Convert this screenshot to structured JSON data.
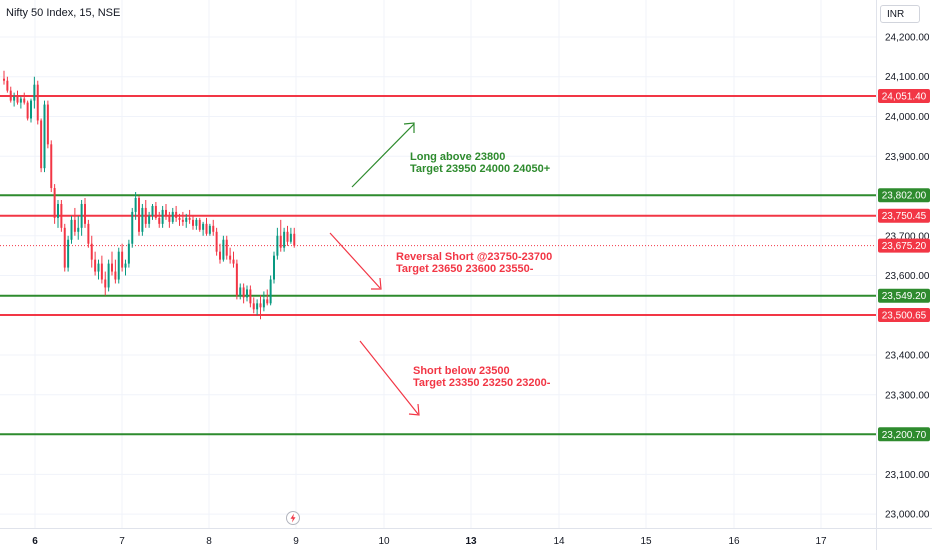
{
  "header": {
    "title": "Nifty 50 Index, 15, NSE"
  },
  "currency": "INR",
  "chart_data": {
    "type": "candlestick",
    "y_ticks": [
      "24,200.00",
      "24,100.00",
      "24,000.00",
      "23,900.00",
      "23,800.00",
      "23,700.00",
      "23,600.00",
      "23,500.00",
      "23,400.00",
      "23,300.00",
      "23,200.00",
      "23,100.00",
      "23,000.00"
    ],
    "y_tick_values": [
      24200,
      24100,
      24000,
      23900,
      23800,
      23700,
      23600,
      23500,
      23400,
      23300,
      23200,
      23100,
      23000
    ],
    "ylim": [
      22965,
      24293
    ],
    "x_ticks": [
      "6",
      "7",
      "8",
      "9",
      "10",
      "13",
      "14",
      "15",
      "16",
      "17"
    ],
    "x_ticks_bold": [
      "6",
      "13"
    ],
    "horizontal_levels": [
      {
        "value": 24051.4,
        "label": "24,051.40",
        "color": "#f23645"
      },
      {
        "value": 23802.0,
        "label": "23,802.00",
        "color": "#2e8b2e"
      },
      {
        "value": 23750.45,
        "label": "23,750.45",
        "color": "#f23645"
      },
      {
        "value": 23549.2,
        "label": "23,549.20",
        "color": "#2e8b2e"
      },
      {
        "value": 23500.65,
        "label": "23,500.65",
        "color": "#f23645"
      },
      {
        "value": 23200.7,
        "label": "23,200.70",
        "color": "#2e8b2e"
      }
    ],
    "last_price": {
      "value": 23675.2,
      "label": "23,675.20",
      "color": "#f23645"
    },
    "annotations": [
      {
        "lines": [
          "Long above 23800",
          "Target 23950 24000 24050+"
        ],
        "color": "#2e8b2e"
      },
      {
        "lines": [
          "Reversal Short @23750-23700",
          "Target 23650 23600 23550-"
        ],
        "color": "#f23645"
      },
      {
        "lines": [
          "Short below 23500",
          "Target 23350 23250 23200-"
        ],
        "color": "#f23645"
      }
    ],
    "colors": {
      "up": "#089981",
      "down": "#f23645",
      "grid": "#f0f3fa",
      "axis_text": "#131722"
    },
    "candles": [
      {
        "o": 24095,
        "h": 24115,
        "l": 24080,
        "c": 24090
      },
      {
        "o": 24090,
        "h": 24100,
        "l": 24060,
        "c": 24065
      },
      {
        "o": 24065,
        "h": 24075,
        "l": 24035,
        "c": 24040
      },
      {
        "o": 24040,
        "h": 24060,
        "l": 24025,
        "c": 24050
      },
      {
        "o": 24050,
        "h": 24065,
        "l": 24030,
        "c": 24035
      },
      {
        "o": 24035,
        "h": 24050,
        "l": 24020,
        "c": 24045
      },
      {
        "o": 24045,
        "h": 24060,
        "l": 24030,
        "c": 24035
      },
      {
        "o": 24035,
        "h": 24040,
        "l": 23990,
        "c": 23995
      },
      {
        "o": 23995,
        "h": 24045,
        "l": 23985,
        "c": 24040
      },
      {
        "o": 24040,
        "h": 24100,
        "l": 24020,
        "c": 24080
      },
      {
        "o": 24080,
        "h": 24090,
        "l": 23980,
        "c": 23990
      },
      {
        "o": 23990,
        "h": 23995,
        "l": 23860,
        "c": 23870
      },
      {
        "o": 23870,
        "h": 24040,
        "l": 23860,
        "c": 24030
      },
      {
        "o": 24030,
        "h": 24040,
        "l": 23920,
        "c": 23930
      },
      {
        "o": 23930,
        "h": 23940,
        "l": 23810,
        "c": 23820
      },
      {
        "o": 23820,
        "h": 23830,
        "l": 23730,
        "c": 23745
      },
      {
        "o": 23745,
        "h": 23790,
        "l": 23720,
        "c": 23780
      },
      {
        "o": 23780,
        "h": 23790,
        "l": 23710,
        "c": 23720
      },
      {
        "o": 23720,
        "h": 23730,
        "l": 23610,
        "c": 23620
      },
      {
        "o": 23620,
        "h": 23700,
        "l": 23610,
        "c": 23690
      },
      {
        "o": 23690,
        "h": 23750,
        "l": 23680,
        "c": 23740
      },
      {
        "o": 23740,
        "h": 23770,
        "l": 23700,
        "c": 23710
      },
      {
        "o": 23710,
        "h": 23750,
        "l": 23690,
        "c": 23720
      },
      {
        "o": 23720,
        "h": 23790,
        "l": 23700,
        "c": 23780
      },
      {
        "o": 23780,
        "h": 23795,
        "l": 23720,
        "c": 23730
      },
      {
        "o": 23730,
        "h": 23740,
        "l": 23670,
        "c": 23680
      },
      {
        "o": 23680,
        "h": 23700,
        "l": 23620,
        "c": 23640
      },
      {
        "o": 23640,
        "h": 23660,
        "l": 23600,
        "c": 23610
      },
      {
        "o": 23610,
        "h": 23640,
        "l": 23590,
        "c": 23630
      },
      {
        "o": 23630,
        "h": 23650,
        "l": 23580,
        "c": 23590
      },
      {
        "o": 23590,
        "h": 23610,
        "l": 23550,
        "c": 23570
      },
      {
        "o": 23570,
        "h": 23640,
        "l": 23560,
        "c": 23630
      },
      {
        "o": 23630,
        "h": 23660,
        "l": 23600,
        "c": 23610
      },
      {
        "o": 23610,
        "h": 23640,
        "l": 23580,
        "c": 23590
      },
      {
        "o": 23590,
        "h": 23670,
        "l": 23580,
        "c": 23660
      },
      {
        "o": 23660,
        "h": 23680,
        "l": 23610,
        "c": 23620
      },
      {
        "o": 23620,
        "h": 23640,
        "l": 23600,
        "c": 23630
      },
      {
        "o": 23630,
        "h": 23690,
        "l": 23620,
        "c": 23680
      },
      {
        "o": 23680,
        "h": 23770,
        "l": 23670,
        "c": 23760
      },
      {
        "o": 23760,
        "h": 23810,
        "l": 23740,
        "c": 23795
      },
      {
        "o": 23795,
        "h": 23800,
        "l": 23700,
        "c": 23710
      },
      {
        "o": 23710,
        "h": 23780,
        "l": 23700,
        "c": 23770
      },
      {
        "o": 23770,
        "h": 23790,
        "l": 23720,
        "c": 23730
      },
      {
        "o": 23730,
        "h": 23760,
        "l": 23720,
        "c": 23750
      },
      {
        "o": 23750,
        "h": 23780,
        "l": 23740,
        "c": 23775
      },
      {
        "o": 23775,
        "h": 23785,
        "l": 23740,
        "c": 23745
      },
      {
        "o": 23745,
        "h": 23760,
        "l": 23720,
        "c": 23730
      },
      {
        "o": 23730,
        "h": 23775,
        "l": 23720,
        "c": 23765
      },
      {
        "o": 23765,
        "h": 23780,
        "l": 23740,
        "c": 23750
      },
      {
        "o": 23750,
        "h": 23760,
        "l": 23720,
        "c": 23735
      },
      {
        "o": 23735,
        "h": 23770,
        "l": 23730,
        "c": 23760
      },
      {
        "o": 23760,
        "h": 23775,
        "l": 23735,
        "c": 23745
      },
      {
        "o": 23745,
        "h": 23755,
        "l": 23725,
        "c": 23740
      },
      {
        "o": 23740,
        "h": 23760,
        "l": 23725,
        "c": 23735
      },
      {
        "o": 23735,
        "h": 23755,
        "l": 23720,
        "c": 23745
      },
      {
        "o": 23745,
        "h": 23765,
        "l": 23730,
        "c": 23740
      },
      {
        "o": 23740,
        "h": 23750,
        "l": 23715,
        "c": 23725
      },
      {
        "o": 23725,
        "h": 23745,
        "l": 23715,
        "c": 23740
      },
      {
        "o": 23740,
        "h": 23745,
        "l": 23710,
        "c": 23715
      },
      {
        "o": 23715,
        "h": 23735,
        "l": 23700,
        "c": 23730
      },
      {
        "o": 23730,
        "h": 23745,
        "l": 23700,
        "c": 23705
      },
      {
        "o": 23705,
        "h": 23730,
        "l": 23700,
        "c": 23725
      },
      {
        "o": 23725,
        "h": 23740,
        "l": 23700,
        "c": 23710
      },
      {
        "o": 23710,
        "h": 23720,
        "l": 23650,
        "c": 23660
      },
      {
        "o": 23660,
        "h": 23680,
        "l": 23630,
        "c": 23640
      },
      {
        "o": 23640,
        "h": 23700,
        "l": 23635,
        "c": 23690
      },
      {
        "o": 23690,
        "h": 23700,
        "l": 23640,
        "c": 23650
      },
      {
        "o": 23650,
        "h": 23670,
        "l": 23630,
        "c": 23640
      },
      {
        "o": 23640,
        "h": 23660,
        "l": 23620,
        "c": 23630
      },
      {
        "o": 23630,
        "h": 23640,
        "l": 23540,
        "c": 23550
      },
      {
        "o": 23550,
        "h": 23580,
        "l": 23540,
        "c": 23570
      },
      {
        "o": 23570,
        "h": 23580,
        "l": 23530,
        "c": 23545
      },
      {
        "o": 23545,
        "h": 23575,
        "l": 23535,
        "c": 23565
      },
      {
        "o": 23565,
        "h": 23575,
        "l": 23520,
        "c": 23530
      },
      {
        "o": 23530,
        "h": 23545,
        "l": 23505,
        "c": 23515
      },
      {
        "o": 23515,
        "h": 23540,
        "l": 23500,
        "c": 23530
      },
      {
        "o": 23530,
        "h": 23550,
        "l": 23490,
        "c": 23520
      },
      {
        "o": 23520,
        "h": 23560,
        "l": 23510,
        "c": 23540
      },
      {
        "o": 23540,
        "h": 23565,
        "l": 23525,
        "c": 23530
      },
      {
        "o": 23530,
        "h": 23600,
        "l": 23525,
        "c": 23590
      },
      {
        "o": 23590,
        "h": 23660,
        "l": 23580,
        "c": 23650
      },
      {
        "o": 23650,
        "h": 23720,
        "l": 23640,
        "c": 23700
      },
      {
        "o": 23700,
        "h": 23740,
        "l": 23660,
        "c": 23670
      },
      {
        "o": 23670,
        "h": 23720,
        "l": 23660,
        "c": 23710
      },
      {
        "o": 23710,
        "h": 23725,
        "l": 23675,
        "c": 23685
      },
      {
        "o": 23685,
        "h": 23720,
        "l": 23680,
        "c": 23705
      },
      {
        "o": 23705,
        "h": 23720,
        "l": 23670,
        "c": 23675
      }
    ]
  }
}
